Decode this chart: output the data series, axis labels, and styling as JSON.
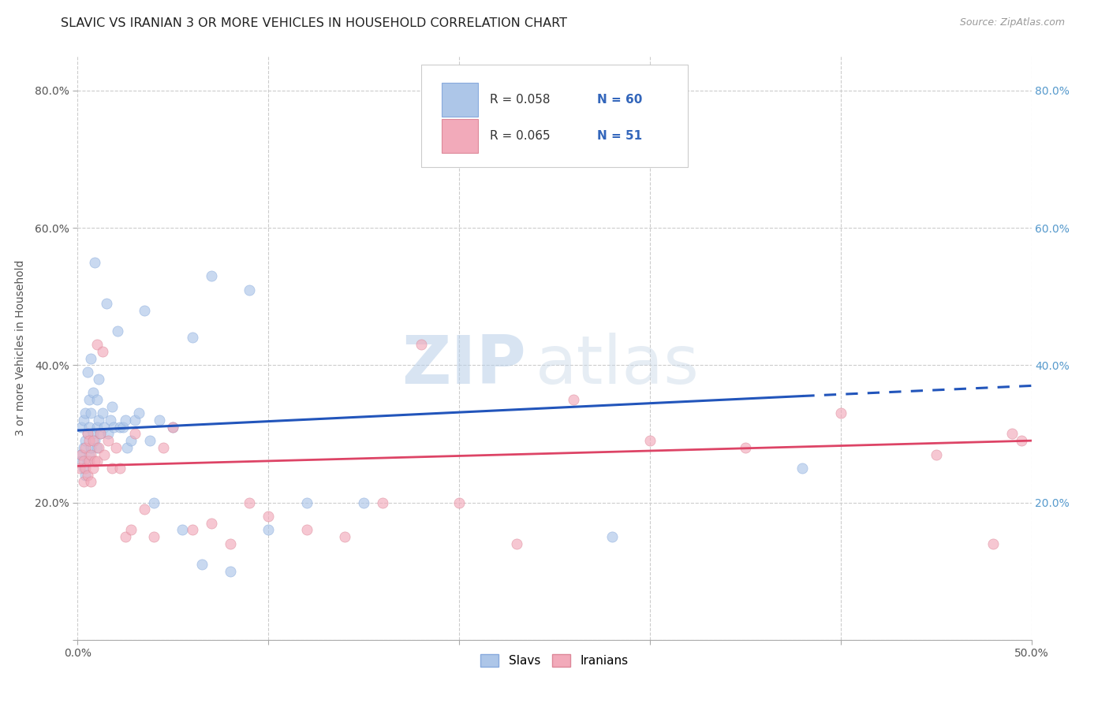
{
  "title": "SLAVIC VS IRANIAN 3 OR MORE VEHICLES IN HOUSEHOLD CORRELATION CHART",
  "source": "Source: ZipAtlas.com",
  "ylabel": "3 or more Vehicles in Household",
  "xlim": [
    0.0,
    0.5
  ],
  "ylim": [
    0.0,
    0.85
  ],
  "xticks": [
    0.0,
    0.1,
    0.2,
    0.3,
    0.4,
    0.5
  ],
  "yticks": [
    0.0,
    0.2,
    0.4,
    0.6,
    0.8
  ],
  "xtick_labels": [
    "0.0%",
    "",
    "",
    "",
    "",
    "50.0%"
  ],
  "ytick_labels_left": [
    "",
    "20.0%",
    "40.0%",
    "60.0%",
    "80.0%"
  ],
  "ytick_labels_right": [
    "",
    "20.0%",
    "40.0%",
    "60.0%",
    "80.0%"
  ],
  "grid_color": "#cccccc",
  "background_color": "#ffffff",
  "watermark_zip": "ZIP",
  "watermark_atlas": "atlas",
  "legend_R_slavs": "R = 0.058",
  "legend_N_slavs": "N = 60",
  "legend_R_iranians": "R = 0.065",
  "legend_N_iranians": "N = 51",
  "slavs_color": "#adc6e8",
  "iranians_color": "#f2aaba",
  "slavs_line_color": "#2255bb",
  "iranians_line_color": "#dd4466",
  "slavs_marker_edge": "#88aadd",
  "iranians_marker_edge": "#dd8899",
  "slavs_x": [
    0.001,
    0.002,
    0.002,
    0.003,
    0.003,
    0.003,
    0.004,
    0.004,
    0.004,
    0.005,
    0.005,
    0.005,
    0.006,
    0.006,
    0.006,
    0.007,
    0.007,
    0.007,
    0.008,
    0.008,
    0.009,
    0.009,
    0.01,
    0.01,
    0.01,
    0.011,
    0.011,
    0.012,
    0.013,
    0.014,
    0.015,
    0.016,
    0.017,
    0.018,
    0.019,
    0.021,
    0.022,
    0.024,
    0.025,
    0.026,
    0.028,
    0.03,
    0.032,
    0.035,
    0.038,
    0.04,
    0.043,
    0.05,
    0.055,
    0.06,
    0.065,
    0.07,
    0.08,
    0.09,
    0.1,
    0.12,
    0.15,
    0.2,
    0.28,
    0.38
  ],
  "slavs_y": [
    0.27,
    0.31,
    0.26,
    0.25,
    0.28,
    0.32,
    0.24,
    0.29,
    0.33,
    0.26,
    0.3,
    0.39,
    0.27,
    0.31,
    0.35,
    0.28,
    0.33,
    0.41,
    0.3,
    0.36,
    0.29,
    0.55,
    0.31,
    0.35,
    0.28,
    0.32,
    0.38,
    0.3,
    0.33,
    0.31,
    0.49,
    0.3,
    0.32,
    0.34,
    0.31,
    0.45,
    0.31,
    0.31,
    0.32,
    0.28,
    0.29,
    0.32,
    0.33,
    0.48,
    0.29,
    0.2,
    0.32,
    0.31,
    0.16,
    0.44,
    0.11,
    0.53,
    0.1,
    0.51,
    0.16,
    0.2,
    0.2,
    0.73,
    0.15,
    0.25
  ],
  "iranians_x": [
    0.001,
    0.002,
    0.003,
    0.003,
    0.004,
    0.004,
    0.005,
    0.005,
    0.006,
    0.006,
    0.007,
    0.007,
    0.008,
    0.008,
    0.009,
    0.01,
    0.01,
    0.011,
    0.012,
    0.013,
    0.014,
    0.016,
    0.018,
    0.02,
    0.022,
    0.025,
    0.028,
    0.03,
    0.035,
    0.04,
    0.045,
    0.05,
    0.06,
    0.07,
    0.08,
    0.09,
    0.1,
    0.12,
    0.14,
    0.16,
    0.18,
    0.2,
    0.23,
    0.26,
    0.3,
    0.35,
    0.4,
    0.45,
    0.48,
    0.49,
    0.495
  ],
  "iranians_y": [
    0.25,
    0.27,
    0.23,
    0.26,
    0.25,
    0.28,
    0.24,
    0.3,
    0.26,
    0.29,
    0.23,
    0.27,
    0.25,
    0.29,
    0.26,
    0.43,
    0.26,
    0.28,
    0.3,
    0.42,
    0.27,
    0.29,
    0.25,
    0.28,
    0.25,
    0.15,
    0.16,
    0.3,
    0.19,
    0.15,
    0.28,
    0.31,
    0.16,
    0.17,
    0.14,
    0.2,
    0.18,
    0.16,
    0.15,
    0.2,
    0.43,
    0.2,
    0.14,
    0.35,
    0.29,
    0.28,
    0.33,
    0.27,
    0.14,
    0.3,
    0.29
  ],
  "slavs_trend_start_x": 0.0,
  "slavs_trend_start_y": 0.305,
  "slavs_trend_solid_end_x": 0.38,
  "slavs_trend_solid_end_y": 0.355,
  "slavs_trend_end_x": 0.5,
  "slavs_trend_end_y": 0.37,
  "iranians_trend_start_x": 0.0,
  "iranians_trend_start_y": 0.253,
  "iranians_trend_end_x": 0.5,
  "iranians_trend_end_y": 0.29,
  "marker_size": 90,
  "marker_alpha": 0.65,
  "title_fontsize": 11.5,
  "axis_label_fontsize": 10,
  "tick_fontsize": 10,
  "legend_fontsize": 11,
  "legend_color_text": "#3366bb",
  "legend_R_color": "#333333"
}
